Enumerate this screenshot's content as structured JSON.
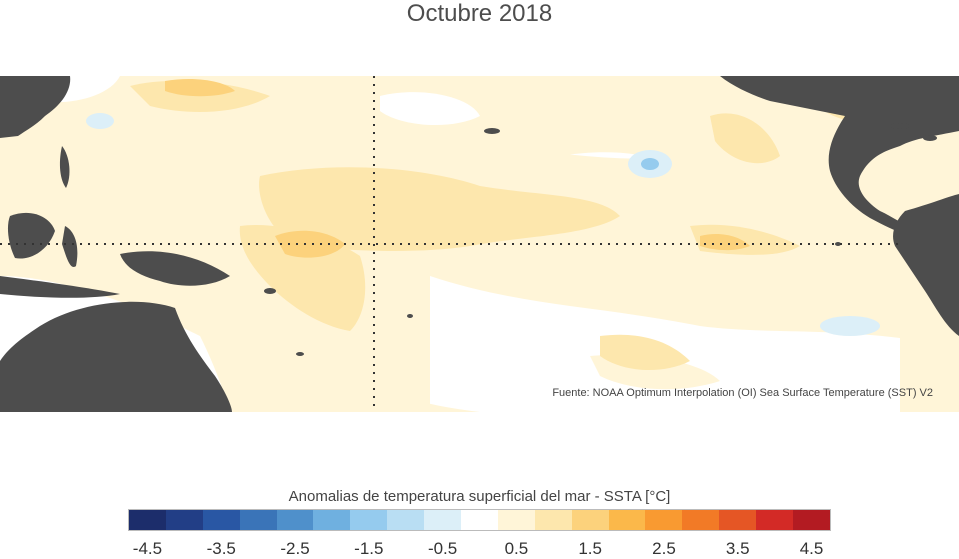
{
  "title": "Octubre 2018",
  "source": "Fuente: NOAA Optimum Interpolation (OI) Sea Surface Temperature (SST) V2",
  "colorbar": {
    "label": "Anomalias de temperatura superficial del mar - SSTA  [°C]",
    "bins": [
      {
        "from": -4.5,
        "to": -4.0,
        "color": "#1c2d6b"
      },
      {
        "from": -4.0,
        "to": -3.5,
        "color": "#223e86"
      },
      {
        "from": -3.5,
        "to": -3.0,
        "color": "#2957a4"
      },
      {
        "from": -3.0,
        "to": -2.5,
        "color": "#3a74b8"
      },
      {
        "from": -2.5,
        "to": -2.0,
        "color": "#4f90cb"
      },
      {
        "from": -2.0,
        "to": -1.5,
        "color": "#6fb0e0"
      },
      {
        "from": -1.5,
        "to": -1.0,
        "color": "#95cbee"
      },
      {
        "from": -1.0,
        "to": -0.5,
        "color": "#b9def3"
      },
      {
        "from": -0.5,
        "to": 0.0,
        "color": "#dceff8"
      },
      {
        "from": 0.0,
        "to": 0.5,
        "color": "#ffffff"
      },
      {
        "from": 0.5,
        "to": 1.0,
        "color": "#fff5d8"
      },
      {
        "from": 1.0,
        "to": 1.5,
        "color": "#fde7ad"
      },
      {
        "from": 1.5,
        "to": 2.0,
        "color": "#fcd27c"
      },
      {
        "from": 2.0,
        "to": 2.5,
        "color": "#fbb84a"
      },
      {
        "from": 2.5,
        "to": 3.0,
        "color": "#f99a31"
      },
      {
        "from": 3.0,
        "to": 3.5,
        "color": "#f27a26"
      },
      {
        "from": 3.5,
        "to": 4.0,
        "color": "#e55625"
      },
      {
        "from": 4.0,
        "to": 4.5,
        "color": "#d32a26"
      },
      {
        "from": 4.5,
        "to": 5.0,
        "color": "#b31b22"
      }
    ],
    "ticks": [
      "-4.5",
      "-3.5",
      "-2.5",
      "-1.5",
      "-0.5",
      "0.5",
      "1.5",
      "2.5",
      "3.5",
      "4.5"
    ]
  },
  "colors": {
    "land": "#4d4d4d",
    "ocean_base": "#fff5d8",
    "guide_lines": "#333333"
  }
}
